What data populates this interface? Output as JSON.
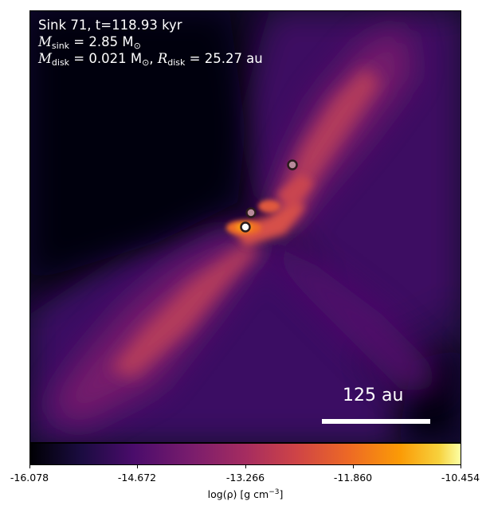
{
  "title_line1": "Sink 71, t=118.93 kyr",
  "mass_line": {
    "symbol": "M",
    "sub": "sink",
    "value": " = 2.85 M",
    "sun": "⊙"
  },
  "disk_line": {
    "m_symbol": "M",
    "m_sub": "disk",
    "m_value": " = 0.021 M",
    "sun": "⊙",
    "sep": ", ",
    "r_symbol": "R",
    "r_sub": "disk",
    "r_value": " = 25.27 au"
  },
  "scalebar_label": "125 au",
  "colorbar": {
    "colormap": "inferno",
    "ticks": [
      "-16.078",
      "-14.672",
      "-13.266",
      "-11.860",
      "-10.454"
    ],
    "label": "log(ρ) [g cm",
    "label_sup": "−3",
    "label_end": "]"
  },
  "sinks_count_shown": 3
}
